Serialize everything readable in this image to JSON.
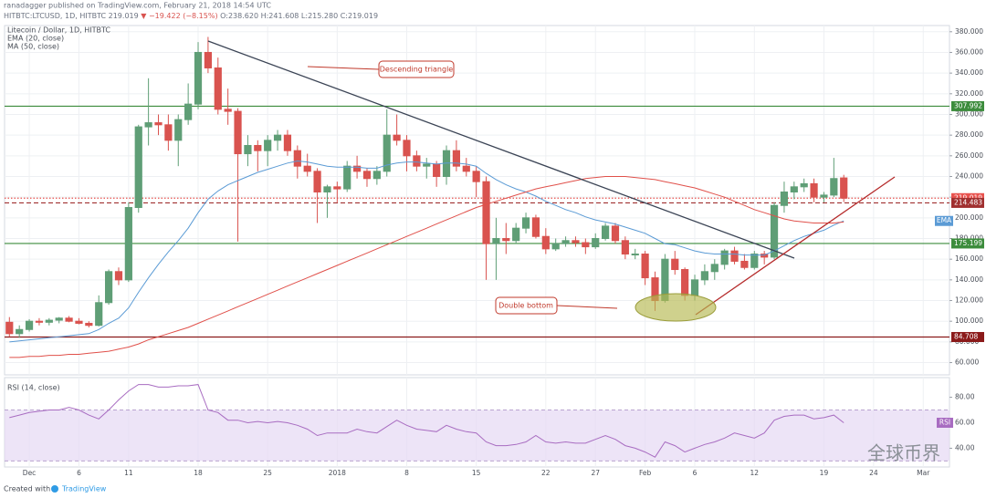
{
  "header": {
    "author_line": "ranadagger published on TradingView.com, February 21, 2018 14:54 UTC",
    "symbol": "HITBTC:LTCUSD, 1D, HITBTC",
    "price": "219.019",
    "change": "▼ −19.422 (−8.15%)",
    "ohlc": "O:238.620 H:241.608 L:215.280 C:219.019"
  },
  "footer": {
    "created_with": "Created with",
    "brand": "TradingView"
  },
  "watermark": "全球币界",
  "chart_data": [
    {
      "type": "candlestick",
      "title": "Litecoin / Dollar, 1D, HITBTC",
      "categories": [
        null,
        null,
        "Dec",
        null,
        null,
        null,
        null,
        "6",
        null,
        null,
        null,
        null,
        "11",
        null,
        null,
        null,
        null,
        null,
        null,
        "18",
        null,
        null,
        null,
        null,
        null,
        null,
        "25",
        null,
        null,
        null,
        null,
        null,
        null,
        "2018",
        null,
        null,
        null,
        null,
        null,
        null,
        "8",
        null,
        null,
        null,
        null,
        null,
        null,
        "15",
        null,
        null,
        null,
        null,
        null,
        null,
        "22",
        null,
        null,
        null,
        null,
        "27",
        null,
        null,
        null,
        null,
        "Feb",
        null,
        null,
        null,
        null,
        "6",
        null,
        null,
        null,
        null,
        null,
        "12",
        null,
        null,
        null,
        null,
        null,
        null,
        "19",
        null,
        null,
        null,
        null,
        "24",
        null,
        null,
        null,
        null,
        "Mar",
        null
      ],
      "open": [
        99,
        88,
        92,
        100,
        99,
        101,
        103,
        100,
        98,
        96,
        118,
        148,
        140,
        210,
        288,
        292,
        290,
        275,
        295,
        310,
        360,
        345,
        305,
        303,
        262,
        270,
        265,
        275,
        280,
        265,
        250,
        245,
        225,
        230,
        228,
        250,
        245,
        238,
        245,
        280,
        275,
        260,
        250,
        252,
        240,
        265,
        250,
        245,
        235,
        175,
        180,
        178,
        190,
        200,
        182,
        170,
        175,
        178,
        176,
        172,
        180,
        192,
        178,
        165,
        165,
        142,
        120,
        160,
        150,
        125,
        140,
        148,
        155,
        168,
        158,
        152,
        165,
        162,
        212,
        225,
        230,
        233,
        220,
        222,
        238.62,
        null,
        null,
        null,
        null,
        null,
        null,
        null,
        null,
        null
      ],
      "high": [
        104,
        96,
        102,
        103,
        103,
        104,
        105,
        103,
        100,
        125,
        150,
        152,
        215,
        290,
        335,
        300,
        300,
        300,
        330,
        370,
        375,
        355,
        325,
        306,
        280,
        275,
        280,
        285,
        285,
        270,
        262,
        248,
        232,
        235,
        255,
        260,
        248,
        250,
        305,
        300,
        280,
        265,
        258,
        255,
        270,
        275,
        258,
        250,
        240,
        200,
        195,
        195,
        205,
        203,
        190,
        180,
        182,
        182,
        180,
        185,
        195,
        195,
        182,
        170,
        168,
        148,
        165,
        168,
        152,
        145,
        155,
        160,
        170,
        172,
        165,
        168,
        168,
        215,
        235,
        235,
        238,
        238,
        225,
        258,
        241.608,
        null,
        null,
        null,
        null,
        null,
        null,
        null,
        null,
        null
      ],
      "low": [
        85,
        84,
        90,
        96,
        96,
        98,
        99,
        97,
        94,
        95,
        116,
        135,
        138,
        205,
        270,
        280,
        265,
        250,
        290,
        305,
        340,
        300,
        290,
        177,
        250,
        245,
        250,
        265,
        260,
        238,
        240,
        195,
        200,
        215,
        225,
        238,
        230,
        232,
        240,
        270,
        245,
        245,
        238,
        230,
        232,
        245,
        240,
        220,
        140,
        140,
        165,
        175,
        185,
        180,
        165,
        168,
        172,
        172,
        165,
        170,
        178,
        175,
        160,
        160,
        135,
        110,
        118,
        145,
        120,
        120,
        135,
        140,
        150,
        155,
        150,
        150,
        155,
        160,
        205,
        218,
        225,
        215,
        215,
        220,
        215.28,
        null,
        null,
        null,
        null,
        null,
        null,
        null,
        null,
        null
      ],
      "close": [
        88,
        92,
        100,
        99,
        101,
        103,
        100,
        98,
        96,
        118,
        148,
        140,
        210,
        288,
        292,
        290,
        275,
        295,
        310,
        360,
        345,
        305,
        303,
        262,
        270,
        265,
        275,
        280,
        265,
        250,
        245,
        225,
        230,
        228,
        250,
        245,
        238,
        245,
        280,
        275,
        260,
        250,
        252,
        240,
        265,
        250,
        245,
        235,
        175,
        180,
        178,
        190,
        200,
        182,
        170,
        175,
        178,
        176,
        172,
        180,
        192,
        178,
        165,
        165,
        142,
        120,
        160,
        150,
        125,
        140,
        148,
        155,
        168,
        158,
        152,
        165,
        162,
        212,
        225,
        230,
        233,
        220,
        222,
        238,
        219.019,
        null,
        null,
        null,
        null,
        null,
        null,
        null,
        null,
        null
      ],
      "up_color": "#5f9e76",
      "down_color": "#d9534f",
      "series": [
        {
          "name": "EMA (20, close)",
          "tag": "EMA",
          "color": "#5b9bd5",
          "values": [
            80,
            81,
            82,
            83,
            84,
            85,
            86,
            87,
            88,
            92,
            98,
            103,
            113,
            128,
            142,
            155,
            167,
            178,
            190,
            205,
            218,
            226,
            232,
            236,
            240,
            244,
            247,
            250,
            253,
            255,
            254,
            252,
            250,
            249,
            249,
            249,
            248,
            248,
            251,
            253,
            254,
            254,
            253,
            252,
            253,
            253,
            252,
            250,
            243,
            237,
            232,
            228,
            225,
            221,
            216,
            212,
            208,
            205,
            201,
            198,
            196,
            194,
            191,
            188,
            185,
            180,
            175,
            174,
            171,
            168,
            166,
            165,
            165,
            165,
            164,
            164,
            164,
            168,
            173,
            178,
            182,
            185,
            188,
            193,
            197,
            null,
            null,
            null,
            null,
            null,
            null,
            null,
            null,
            null
          ]
        },
        {
          "name": "MA (50, close)",
          "color": "#e0504a",
          "values": [
            65,
            65,
            66,
            66,
            67,
            67,
            68,
            68,
            69,
            70,
            71,
            73,
            75,
            78,
            82,
            85,
            88,
            91,
            94,
            98,
            102,
            106,
            110,
            114,
            118,
            122,
            126,
            130,
            134,
            138,
            142,
            146,
            150,
            154,
            158,
            162,
            166,
            170,
            174,
            178,
            182,
            186,
            190,
            194,
            198,
            202,
            206,
            210,
            213,
            216,
            219,
            222,
            225,
            228,
            230,
            232,
            234,
            236,
            238,
            239,
            240,
            240,
            240,
            239,
            238,
            237,
            235,
            233,
            231,
            229,
            226,
            223,
            220,
            216,
            212,
            208,
            205,
            202,
            199,
            197,
            196,
            195,
            195,
            195,
            196,
            null,
            null,
            null,
            null,
            null,
            null,
            null,
            null,
            null
          ]
        }
      ],
      "ylim": [
        49,
        386
      ],
      "yticks": [
        {
          "value": 60,
          "label": "60.000"
        },
        {
          "value": 80,
          "label": "80.000"
        },
        {
          "value": 100,
          "label": "100.000"
        },
        {
          "value": 120,
          "label": "120.000"
        },
        {
          "value": 140,
          "label": "140.000"
        },
        {
          "value": 160,
          "label": "160.000"
        },
        {
          "value": 180,
          "label": "180.000"
        },
        {
          "value": 200,
          "label": "200.000"
        },
        {
          "value": 220,
          "label": "220.000"
        },
        {
          "value": 240,
          "label": "240.000"
        },
        {
          "value": 260,
          "label": "260.000"
        },
        {
          "value": 280,
          "label": "280.000"
        },
        {
          "value": 300,
          "label": "300.000"
        },
        {
          "value": 320,
          "label": "320.000"
        },
        {
          "value": 340,
          "label": "340.000"
        },
        {
          "value": 360,
          "label": "360.000"
        },
        {
          "value": 380,
          "label": "380.000"
        }
      ],
      "grid": true,
      "levels": [
        {
          "value": 307.992,
          "color": "#3c8c3c",
          "style": "solid"
        },
        {
          "value": 219.019,
          "color": "#e8534f",
          "style": "dotted"
        },
        {
          "value": 214.483,
          "color": "#a03030",
          "style": "dashed"
        },
        {
          "value": 175.199,
          "color": "#3c8c3c",
          "style": "solid"
        },
        {
          "value": 84.708,
          "color": "#8b1a1a",
          "style": "solid"
        }
      ],
      "annotations": [
        "Descending triangle",
        "Double bottom"
      ]
    },
    {
      "type": "line",
      "title": "RSI (14, close)",
      "tag": "RSI",
      "color": "#a86cc1",
      "values": [
        64,
        66,
        68,
        69,
        70,
        70,
        72,
        70,
        66,
        63,
        70,
        78,
        85,
        90,
        90,
        88,
        88,
        89,
        89,
        90,
        70,
        68,
        62,
        62,
        60,
        61,
        60,
        61,
        60,
        58,
        55,
        50,
        52,
        52,
        52,
        55,
        53,
        52,
        57,
        62,
        58,
        55,
        54,
        53,
        58,
        55,
        53,
        52,
        45,
        42,
        42,
        43,
        45,
        50,
        45,
        44,
        45,
        44,
        44,
        47,
        50,
        47,
        42,
        40,
        37,
        33,
        45,
        42,
        37,
        40,
        43,
        45,
        48,
        52,
        50,
        48,
        52,
        62,
        65,
        66,
        66,
        63,
        64,
        66,
        60,
        null,
        null,
        null,
        null,
        null,
        null,
        null,
        null,
        null
      ],
      "band": [
        30,
        70
      ],
      "band_color": "#e6d8f3",
      "ylim": [
        26,
        94
      ],
      "yticks": [
        {
          "value": 40,
          "label": "40.00"
        },
        {
          "value": 60,
          "label": "60.00"
        },
        {
          "value": 80,
          "label": "80.00"
        }
      ]
    }
  ]
}
